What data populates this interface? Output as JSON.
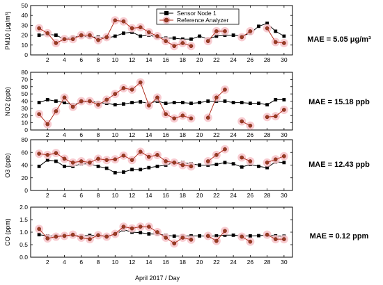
{
  "figure": {
    "xlabel": "April 2017 / Day",
    "legend": {
      "placement": "top-center",
      "items": [
        "Sensor Node 1",
        "Reference Analyzer"
      ]
    },
    "colors": {
      "sensor": "#000000",
      "reference": "#b03020",
      "reference_halo": "#f7c6cc"
    },
    "mae_labels": [
      "MAE = 5.05 μg/m³",
      "MAE = 15.18 ppb",
      "MAE = 12.43 ppb",
      "MAE = 0.12 ppm"
    ]
  },
  "chart_data": [
    {
      "type": "line",
      "ylabel": "PM10 (μg/m³)",
      "ylim": [
        0,
        50
      ],
      "yticks": [
        0,
        10,
        20,
        30,
        40,
        50
      ],
      "xlim": [
        0,
        31
      ],
      "xticks": [
        2,
        4,
        6,
        8,
        10,
        12,
        14,
        16,
        18,
        20,
        22,
        24,
        26,
        28,
        30
      ],
      "annotation": "MAE = 5.05 μg/m³",
      "series": [
        {
          "name": "Sensor Node 1",
          "marker": "square",
          "x": [
            1,
            2,
            3,
            4,
            5,
            6,
            7,
            8,
            9,
            10,
            11,
            12,
            13,
            14,
            15,
            16,
            17,
            18,
            19,
            20,
            21,
            22,
            23,
            24,
            25,
            26,
            27,
            28,
            29,
            30
          ],
          "y": [
            20,
            21,
            20,
            16,
            18,
            19,
            18,
            18,
            17,
            19,
            22,
            23,
            19,
            20,
            18,
            17,
            17,
            16,
            16,
            19,
            16,
            19,
            20,
            20,
            19,
            22,
            29,
            32,
            24,
            19
          ]
        },
        {
          "name": "Reference Analyzer",
          "marker": "circle",
          "x": [
            1,
            2,
            3,
            4,
            5,
            6,
            7,
            8,
            9,
            10,
            11,
            12,
            13,
            14,
            15,
            16,
            17,
            18,
            19,
            20,
            21,
            22,
            23,
            24,
            25,
            26,
            27,
            28,
            29,
            30
          ],
          "y": [
            27,
            22,
            12,
            16,
            16,
            20,
            20,
            15,
            18,
            35,
            34,
            27,
            28,
            23,
            19,
            14,
            9,
            12,
            9,
            null,
            14,
            24,
            24,
            null,
            18,
            24,
            null,
            27,
            13,
            12
          ]
        }
      ]
    },
    {
      "type": "line",
      "ylabel": "NO2 (ppb)",
      "ylim": [
        0,
        80
      ],
      "yticks": [
        0,
        10,
        20,
        30,
        40,
        50,
        60,
        70,
        80
      ],
      "xlim": [
        0,
        31
      ],
      "xticks": [
        2,
        4,
        6,
        8,
        10,
        12,
        14,
        16,
        18,
        20,
        22,
        24,
        26,
        28,
        30
      ],
      "annotation": "MAE = 15.18 ppb",
      "series": [
        {
          "name": "Sensor Node 1",
          "marker": "square",
          "x": [
            1,
            2,
            3,
            4,
            5,
            6,
            7,
            8,
            9,
            10,
            11,
            12,
            13,
            14,
            15,
            16,
            17,
            18,
            19,
            20,
            21,
            22,
            23,
            24,
            25,
            26,
            27,
            28,
            29,
            30
          ],
          "y": [
            38,
            42,
            40,
            38,
            35,
            38,
            40,
            38,
            37,
            35,
            36,
            38,
            39,
            37,
            40,
            37,
            38,
            38,
            37,
            38,
            40,
            40,
            40,
            38,
            38,
            37,
            37,
            35,
            42,
            42
          ]
        },
        {
          "name": "Reference Analyzer",
          "marker": "circle",
          "x": [
            1,
            2,
            3,
            4,
            5,
            6,
            7,
            8,
            9,
            10,
            11,
            12,
            13,
            14,
            15,
            16,
            17,
            18,
            19,
            20,
            21,
            22,
            23,
            24,
            25,
            26,
            27,
            28,
            29,
            30
          ],
          "y": [
            22,
            8,
            26,
            45,
            32,
            40,
            40,
            35,
            42,
            50,
            58,
            56,
            66,
            34,
            45,
            22,
            16,
            20,
            16,
            null,
            17,
            45,
            56,
            null,
            12,
            6,
            null,
            18,
            19,
            28
          ]
        }
      ]
    },
    {
      "type": "line",
      "ylabel": "O3 (ppb)",
      "ylim": [
        0,
        80
      ],
      "yticks": [
        0,
        20,
        40,
        60,
        80
      ],
      "xlim": [
        0,
        31
      ],
      "xticks": [
        2,
        4,
        6,
        8,
        10,
        12,
        14,
        16,
        18,
        20,
        22,
        24,
        26,
        28,
        30
      ],
      "annotation": "MAE = 12.43 ppb",
      "series": [
        {
          "name": "Sensor Node 1",
          "marker": "square",
          "x": [
            1,
            2,
            3,
            4,
            5,
            6,
            7,
            8,
            9,
            10,
            11,
            12,
            13,
            14,
            15,
            16,
            17,
            18,
            19,
            20,
            21,
            22,
            23,
            24,
            25,
            26,
            27,
            28,
            29,
            30
          ],
          "y": [
            38,
            48,
            46,
            38,
            38,
            42,
            42,
            38,
            35,
            28,
            29,
            33,
            33,
            36,
            38,
            40,
            44,
            44,
            42,
            40,
            40,
            41,
            44,
            42,
            37,
            41,
            38,
            36,
            45,
            44
          ]
        },
        {
          "name": "Reference Analyzer",
          "marker": "circle",
          "x": [
            1,
            2,
            3,
            4,
            5,
            6,
            7,
            8,
            9,
            10,
            11,
            12,
            13,
            14,
            15,
            16,
            17,
            18,
            19,
            20,
            21,
            22,
            23,
            24,
            25,
            26,
            27,
            28,
            29,
            30
          ],
          "y": [
            58,
            56,
            59,
            50,
            44,
            46,
            44,
            50,
            48,
            49,
            55,
            48,
            61,
            53,
            56,
            46,
            44,
            40,
            38,
            null,
            46,
            56,
            65,
            null,
            52,
            46,
            null,
            44,
            49,
            54
          ]
        }
      ]
    },
    {
      "type": "line",
      "ylabel": "CO (ppm)",
      "ylim": [
        0,
        2.0
      ],
      "yticks": [
        0.0,
        0.5,
        1.0,
        1.5,
        2.0
      ],
      "xlim": [
        0,
        31
      ],
      "xticks": [
        2,
        4,
        6,
        8,
        10,
        12,
        14,
        16,
        18,
        20,
        22,
        24,
        26,
        28,
        30
      ],
      "annotation": "MAE = 0.12 ppm",
      "series": [
        {
          "name": "Sensor Node 1",
          "marker": "square",
          "x": [
            1,
            2,
            3,
            4,
            5,
            6,
            7,
            8,
            9,
            10,
            11,
            12,
            13,
            14,
            15,
            16,
            17,
            18,
            19,
            20,
            21,
            22,
            23,
            24,
            25,
            26,
            27,
            28,
            29,
            30
          ],
          "y": [
            0.9,
            0.85,
            0.85,
            0.87,
            0.87,
            0.85,
            0.87,
            0.87,
            0.85,
            0.9,
            1.1,
            1.0,
            0.98,
            0.93,
            0.92,
            0.88,
            0.84,
            0.85,
            0.85,
            0.85,
            0.84,
            0.85,
            0.88,
            0.88,
            0.85,
            0.85,
            0.86,
            0.88,
            0.85,
            0.84
          ]
        },
        {
          "name": "Reference Analyzer",
          "marker": "circle",
          "x": [
            1,
            2,
            3,
            4,
            5,
            6,
            7,
            8,
            9,
            10,
            11,
            12,
            13,
            14,
            15,
            16,
            17,
            18,
            19,
            20,
            21,
            22,
            23,
            24,
            25,
            26,
            27,
            28,
            29,
            30
          ],
          "y": [
            1.13,
            0.75,
            0.82,
            0.85,
            0.9,
            0.78,
            0.72,
            0.88,
            0.82,
            0.93,
            1.22,
            1.15,
            1.22,
            1.22,
            1.0,
            0.78,
            0.55,
            0.78,
            0.7,
            null,
            0.85,
            0.65,
            1.05,
            null,
            0.82,
            0.62,
            null,
            0.9,
            0.72,
            0.72
          ]
        }
      ]
    }
  ]
}
